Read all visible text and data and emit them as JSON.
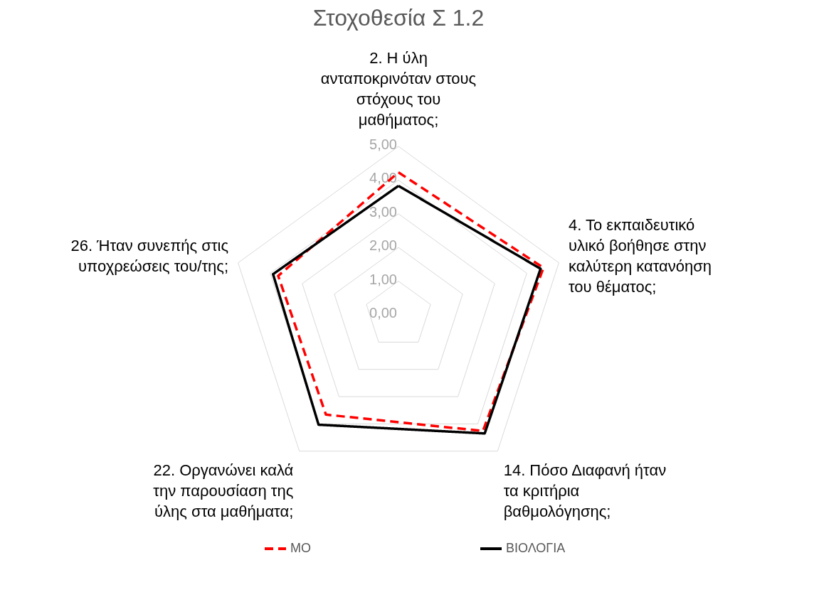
{
  "chart_data": {
    "type": "radar",
    "title": "Στοχοθεσία Σ 1.2",
    "categories": [
      "2. Η ύλη ανταποκρινόταν στους στόχους του μαθήματος;",
      "4. Το εκπαιδευτικό υλικό βοήθησε στην καλύτερη κατανόηση του θέματος;",
      "14. Πόσο Διαφανή ήταν τα κριτήρια βαθμολόγησης;",
      "22. Οργανώνει καλά την παρουσίαση της ύλης στα μαθήματα;",
      "26. Ήταν συνεπής στις υποχρεώσεις του/της;"
    ],
    "series": [
      {
        "name": "ΜΟ",
        "color": "#ff0000",
        "line_style": "dashed",
        "values": [
          4.23,
          4.52,
          4.26,
          3.66,
          3.75
        ]
      },
      {
        "name": "ΒΙΟΛΟΓΙΑ",
        "color": "#000000",
        "line_style": "solid",
        "values": [
          3.83,
          4.43,
          4.35,
          4.03,
          3.91
        ]
      }
    ],
    "ylim": [
      0,
      5
    ],
    "yticks": [
      {
        "value": 0,
        "label": "0,00"
      },
      {
        "value": 1,
        "label": "1,00"
      },
      {
        "value": 2,
        "label": "2,00"
      },
      {
        "value": 3,
        "label": "3,00"
      },
      {
        "value": 4,
        "label": "4,00"
      },
      {
        "value": 5,
        "label": "5,00"
      }
    ],
    "grid": true,
    "legend": "bottom",
    "marker": "none"
  }
}
